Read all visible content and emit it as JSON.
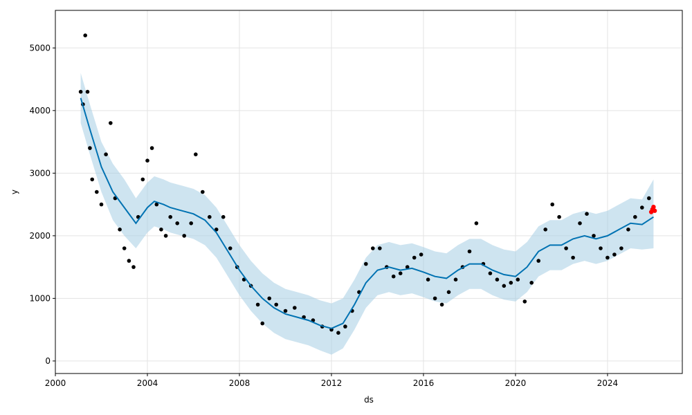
{
  "chart_data": {
    "type": "scatter",
    "title": "",
    "xlabel": "ds",
    "ylabel": "y",
    "grid": true,
    "xlim": [
      2000.0,
      2027.25
    ],
    "ylim": [
      -200,
      5600
    ],
    "x_ticks": [
      2000,
      2004,
      2008,
      2012,
      2016,
      2020,
      2024
    ],
    "x_tick_labels": [
      "2000",
      "2004",
      "2008",
      "2012",
      "2016",
      "2020",
      "2024"
    ],
    "y_ticks": [
      0,
      1000,
      2000,
      3000,
      4000,
      5000
    ],
    "y_tick_labels": [
      "0",
      "1000",
      "2000",
      "3000",
      "4000",
      "5000"
    ],
    "colors": {
      "observed": "#000000",
      "forecast": "#0072b2",
      "interval": "#a6cee3",
      "future_points": "#ff0000"
    },
    "series": [
      {
        "type": "line",
        "role": "forecast",
        "x": [
          2001.1,
          2001.5,
          2002.0,
          2002.5,
          2003.0,
          2003.5,
          2004.0,
          2004.3,
          2004.7,
          2005.0,
          2005.5,
          2006.0,
          2006.5,
          2007.0,
          2007.5,
          2008.0,
          2008.5,
          2009.0,
          2009.5,
          2010.0,
          2010.5,
          2011.0,
          2011.5,
          2012.0,
          2012.5,
          2013.0,
          2013.5,
          2014.0,
          2014.5,
          2015.0,
          2015.5,
          2016.0,
          2016.5,
          2017.0,
          2017.5,
          2018.0,
          2018.5,
          2019.0,
          2019.5,
          2020.0,
          2020.5,
          2021.0,
          2021.5,
          2022.0,
          2022.5,
          2023.0,
          2023.5,
          2024.0,
          2024.5,
          2025.0,
          2025.5,
          2026.0
        ],
        "y": [
          4200,
          3700,
          3100,
          2700,
          2450,
          2200,
          2450,
          2550,
          2500,
          2450,
          2400,
          2350,
          2250,
          2050,
          1750,
          1450,
          1200,
          1000,
          850,
          750,
          700,
          650,
          570,
          520,
          600,
          900,
          1250,
          1450,
          1500,
          1450,
          1480,
          1420,
          1350,
          1320,
          1450,
          1550,
          1550,
          1450,
          1380,
          1350,
          1500,
          1750,
          1850,
          1850,
          1950,
          2000,
          1950,
          2000,
          2100,
          2200,
          2180,
          2300
        ]
      },
      {
        "type": "area",
        "role": "uncertainty_interval",
        "x": [
          2001.1,
          2001.5,
          2002.0,
          2002.5,
          2003.0,
          2003.5,
          2004.0,
          2004.3,
          2004.7,
          2005.0,
          2005.5,
          2006.0,
          2006.5,
          2007.0,
          2007.5,
          2008.0,
          2008.5,
          2009.0,
          2009.5,
          2010.0,
          2010.5,
          2011.0,
          2011.5,
          2012.0,
          2012.5,
          2013.0,
          2013.5,
          2014.0,
          2014.5,
          2015.0,
          2015.5,
          2016.0,
          2016.5,
          2017.0,
          2017.5,
          2018.0,
          2018.5,
          2019.0,
          2019.5,
          2020.0,
          2020.5,
          2021.0,
          2021.5,
          2022.0,
          2022.5,
          2023.0,
          2023.5,
          2024.0,
          2024.5,
          2025.0,
          2025.5,
          2026.0
        ],
        "y_lower": [
          3800,
          3300,
          2700,
          2250,
          2000,
          1800,
          2050,
          2150,
          2100,
          2050,
          2000,
          1950,
          1850,
          1650,
          1350,
          1050,
          800,
          600,
          450,
          350,
          300,
          250,
          170,
          100,
          200,
          500,
          850,
          1050,
          1100,
          1050,
          1080,
          1020,
          950,
          920,
          1050,
          1150,
          1150,
          1050,
          980,
          950,
          1100,
          1350,
          1450,
          1450,
          1550,
          1600,
          1550,
          1600,
          1700,
          1800,
          1780,
          1800
        ],
        "y_upper": [
          4600,
          4100,
          3500,
          3150,
          2900,
          2600,
          2850,
          2950,
          2900,
          2850,
          2800,
          2750,
          2650,
          2450,
          2150,
          1850,
          1600,
          1400,
          1250,
          1150,
          1100,
          1050,
          970,
          920,
          1000,
          1300,
          1650,
          1850,
          1900,
          1850,
          1880,
          1820,
          1750,
          1720,
          1850,
          1950,
          1950,
          1850,
          1780,
          1750,
          1900,
          2150,
          2250,
          2250,
          2350,
          2400,
          2350,
          2400,
          2500,
          2600,
          2580,
          2900
        ]
      },
      {
        "type": "scatter",
        "role": "observed",
        "x": [
          2001.1,
          2001.2,
          2001.3,
          2001.4,
          2001.5,
          2001.6,
          2001.8,
          2002.0,
          2002.2,
          2002.4,
          2002.6,
          2002.8,
          2003.0,
          2003.2,
          2003.4,
          2003.6,
          2003.8,
          2004.0,
          2004.2,
          2004.4,
          2004.6,
          2004.8,
          2005.0,
          2005.3,
          2005.6,
          2005.9,
          2006.1,
          2006.4,
          2006.7,
          2007.0,
          2007.3,
          2007.6,
          2007.9,
          2008.2,
          2008.5,
          2008.8,
          2009.0,
          2009.3,
          2009.6,
          2010.0,
          2010.4,
          2010.8,
          2011.2,
          2011.6,
          2012.0,
          2012.3,
          2012.6,
          2012.9,
          2013.2,
          2013.5,
          2013.8,
          2014.1,
          2014.4,
          2014.7,
          2015.0,
          2015.3,
          2015.6,
          2015.9,
          2016.2,
          2016.5,
          2016.8,
          2017.1,
          2017.4,
          2017.7,
          2018.0,
          2018.3,
          2018.6,
          2018.9,
          2019.2,
          2019.5,
          2019.8,
          2020.1,
          2020.4,
          2020.7,
          2021.0,
          2021.3,
          2021.6,
          2021.9,
          2022.2,
          2022.5,
          2022.8,
          2023.1,
          2023.4,
          2023.7,
          2024.0,
          2024.3,
          2024.6,
          2024.9,
          2025.2,
          2025.5,
          2025.8
        ],
        "y": [
          4300,
          4100,
          5200,
          4300,
          3400,
          2900,
          2700,
          2500,
          3300,
          3800,
          2600,
          2100,
          1800,
          1600,
          1500,
          2300,
          2900,
          3200,
          3400,
          2500,
          2100,
          2000,
          2300,
          2200,
          2000,
          2200,
          3300,
          2700,
          2300,
          2100,
          2300,
          1800,
          1500,
          1300,
          1200,
          900,
          600,
          1000,
          900,
          800,
          850,
          700,
          650,
          550,
          500,
          450,
          550,
          800,
          1100,
          1550,
          1800,
          1800,
          1500,
          1350,
          1400,
          1500,
          1650,
          1700,
          1300,
          1000,
          900,
          1100,
          1300,
          1500,
          1750,
          2200,
          1550,
          1400,
          1300,
          1200,
          1250,
          1300,
          950,
          1250,
          1600,
          2100,
          2500,
          2300,
          1800,
          1650,
          2200,
          2350,
          2000,
          1800,
          1650,
          1700,
          1800,
          2100,
          2300,
          2450,
          2600
        ]
      },
      {
        "type": "scatter",
        "role": "future_points",
        "x": [
          2025.9,
          2025.95,
          2026.0,
          2026.05
        ],
        "y": [
          2380,
          2420,
          2460,
          2400
        ]
      }
    ]
  }
}
